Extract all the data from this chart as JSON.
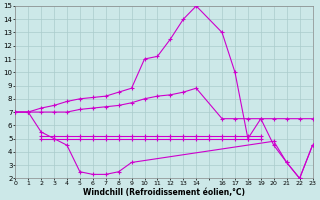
{
  "background_color": "#cce8e8",
  "grid_color": "#aacccc",
  "line_color": "#cc00cc",
  "xlabel": "Windchill (Refroidissement éolien,°C)",
  "xlim": [
    0,
    23
  ],
  "ylim": [
    2,
    15
  ],
  "yticks": [
    2,
    3,
    4,
    5,
    6,
    7,
    8,
    9,
    10,
    11,
    12,
    13,
    14,
    15
  ],
  "xtick_labels": [
    "0",
    "1",
    "2",
    "3",
    "4",
    "5",
    "6",
    "7",
    "8",
    "9",
    "10",
    "11",
    "12",
    "13",
    "14",
    "",
    "16",
    "17",
    "18",
    "19",
    "20",
    "21",
    "22",
    "23"
  ],
  "series_main_x": [
    0,
    1,
    2,
    3,
    4,
    5,
    6,
    7,
    8,
    9,
    10,
    11,
    12,
    13,
    14,
    16,
    17,
    18,
    19,
    20,
    21,
    22,
    23
  ],
  "series_main_y": [
    7,
    7,
    7.3,
    7.5,
    7.8,
    8.0,
    8.1,
    8.2,
    8.5,
    8.8,
    11.0,
    11.2,
    12.5,
    14.0,
    15.0,
    13.0,
    10.0,
    5.0,
    6.5,
    4.5,
    3.2,
    2.0,
    4.5
  ],
  "series_rise_x": [
    0,
    1,
    2,
    3,
    4,
    5,
    6,
    7,
    8,
    9,
    10,
    11,
    12,
    13,
    14,
    16,
    17,
    18,
    19,
    20,
    21,
    22,
    23
  ],
  "series_rise_y": [
    7,
    7,
    7,
    7,
    7,
    7.2,
    7.3,
    7.4,
    7.5,
    7.7,
    8.0,
    8.2,
    8.3,
    8.5,
    8.8,
    6.5,
    6.5,
    6.5,
    6.5,
    6.5,
    6.5,
    6.5,
    6.5
  ],
  "series_flat1_x": [
    2,
    3,
    4,
    5,
    6,
    7,
    8,
    9,
    10,
    11,
    12,
    13,
    14,
    15,
    16,
    17,
    18,
    19
  ],
  "series_flat1_y": [
    5.2,
    5.2,
    5.2,
    5.2,
    5.2,
    5.2,
    5.2,
    5.2,
    5.2,
    5.2,
    5.2,
    5.2,
    5.2,
    5.2,
    5.2,
    5.2,
    5.2,
    5.2
  ],
  "series_flat2_x": [
    2,
    3,
    4,
    5,
    6,
    7,
    8,
    9,
    10,
    11,
    12,
    13,
    14,
    15,
    16,
    17,
    18,
    19
  ],
  "series_flat2_y": [
    5.0,
    5.0,
    5.0,
    5.0,
    5.0,
    5.0,
    5.0,
    5.0,
    5.0,
    5.0,
    5.0,
    5.0,
    5.0,
    5.0,
    5.0,
    5.0,
    5.0,
    5.0
  ],
  "series_valley_x": [
    0,
    1,
    2,
    3,
    4,
    5,
    6,
    7,
    8,
    9,
    20,
    21,
    22,
    23
  ],
  "series_valley_y": [
    7,
    7,
    5.5,
    5.0,
    4.5,
    2.5,
    2.3,
    2.3,
    2.5,
    3.2,
    4.8,
    3.2,
    2.0,
    4.5
  ],
  "marker": "P",
  "markersize": 2.5,
  "linewidth": 0.8
}
